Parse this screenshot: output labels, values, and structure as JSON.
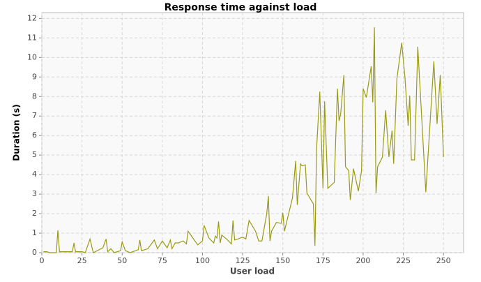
{
  "chart_data": {
    "type": "line",
    "title": "Response time against load",
    "x_label": "User load",
    "y_label": "Duration (s)",
    "color": "#9a9a14",
    "grid": true,
    "xlim": [
      0,
      262.5
    ],
    "ylim": [
      0,
      12.3
    ],
    "xticks": [
      0,
      25,
      50,
      75,
      100,
      125,
      150,
      175,
      200,
      225,
      250
    ],
    "yticks": [
      0,
      1,
      2,
      3,
      4,
      5,
      6,
      7,
      8,
      9,
      10,
      11,
      12
    ],
    "x": [
      1,
      3,
      5,
      9,
      10,
      11,
      15,
      19,
      20,
      21,
      25,
      27,
      30,
      32,
      38,
      40,
      41,
      43,
      45,
      49,
      50,
      52,
      55,
      60,
      61,
      62,
      66,
      70,
      72,
      75,
      78,
      80,
      81,
      83,
      85,
      88,
      90,
      91,
      94,
      97,
      100,
      101,
      104,
      107,
      108,
      109,
      110,
      111,
      112,
      115,
      118,
      119,
      120,
      122,
      125,
      127,
      129,
      133,
      135,
      137,
      140,
      141,
      142,
      143,
      146,
      149,
      150,
      151,
      156,
      158,
      159,
      161,
      162,
      164,
      165,
      169,
      170,
      171,
      173,
      175,
      176,
      178,
      182,
      184,
      185,
      186,
      188,
      189,
      191,
      192,
      194,
      197,
      199,
      200,
      202,
      205,
      206,
      207,
      208,
      209,
      212,
      214,
      216,
      218,
      219,
      221,
      224,
      226,
      228,
      229,
      230,
      232,
      234,
      239,
      244,
      246,
      248,
      250
    ],
    "values": [
      0.05,
      0.05,
      0,
      0,
      1.15,
      0.05,
      0.05,
      0.05,
      0.5,
      0.05,
      0.05,
      0,
      0.7,
      0,
      0.25,
      0.7,
      0.05,
      0.2,
      0,
      0.1,
      0.55,
      0.1,
      0,
      0.15,
      0.65,
      0.1,
      0.2,
      0.65,
      0.2,
      0.6,
      0.25,
      0.65,
      0.2,
      0.5,
      0.5,
      0.6,
      0.45,
      1.1,
      0.75,
      0.4,
      0.6,
      1.4,
      0.75,
      0.5,
      0.85,
      0.75,
      1.6,
      0.5,
      0.9,
      0.7,
      0.45,
      1.65,
      0.65,
      0.7,
      0.8,
      0.7,
      1.65,
      1.1,
      0.6,
      0.6,
      2.0,
      2.9,
      0.6,
      1.1,
      1.55,
      1.5,
      2.05,
      1.1,
      2.8,
      4.7,
      2.45,
      4.55,
      4.45,
      4.5,
      3.05,
      2.5,
      0.35,
      5.3,
      8.25,
      3.3,
      7.75,
      3.3,
      3.6,
      8.4,
      6.75,
      7.1,
      9.1,
      4.4,
      4.2,
      2.7,
      4.3,
      3.15,
      4.2,
      8.4,
      7.95,
      9.55,
      7.7,
      11.55,
      3.05,
      4.4,
      4.9,
      7.3,
      4.9,
      6.25,
      4.55,
      8.9,
      10.75,
      9.0,
      6.5,
      8.05,
      4.75,
      4.75,
      10.55,
      3.1,
      9.8,
      6.6,
      9.1,
      4.9
    ]
  }
}
